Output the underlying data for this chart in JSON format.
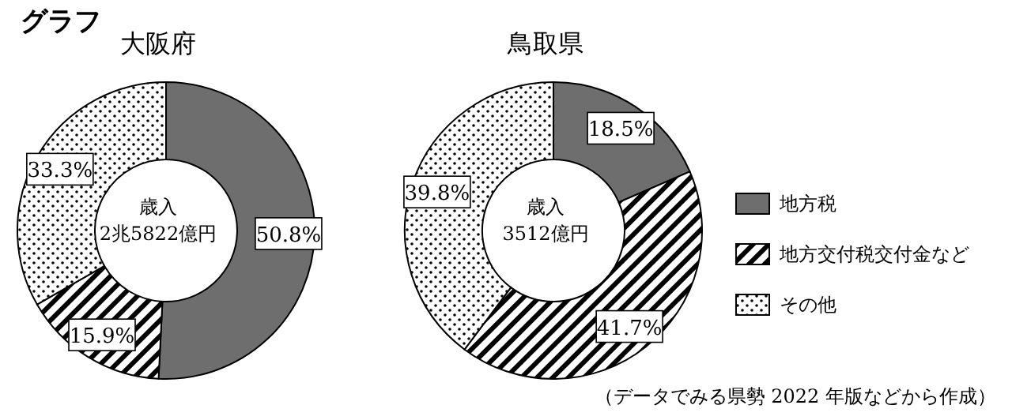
{
  "chart_data": [
    {
      "type": "donut",
      "title": "グラフ",
      "subtitle": "大阪府",
      "categories": [
        null,
        null,
        null
      ],
      "values": [
        50.8,
        15.9,
        33.3
      ],
      "colors": [
        "#6e6e6e",
        "#000000",
        "#000000"
      ],
      "value_labels": [
        "50.8%",
        "15.9%",
        "33.3%"
      ],
      "annotations": [
        "歳入\n2兆5822億円"
      ],
      "legend": false
    },
    {
      "type": "donut",
      "subtitle": "鳥取県",
      "categories": [
        "地方税",
        "地方交付税交付金など",
        "その他"
      ],
      "values": [
        18.5,
        41.7,
        39.8
      ],
      "colors": [
        "#6e6e6e",
        "#000000",
        "#000000"
      ],
      "value_labels": [
        "18.5%",
        "41.7%",
        "39.8%"
      ],
      "annotations": [
        "歳入\n3512億円",
        "（データでみる県勢 2022 年版などから作成）"
      ],
      "legend": "right"
    }
  ]
}
